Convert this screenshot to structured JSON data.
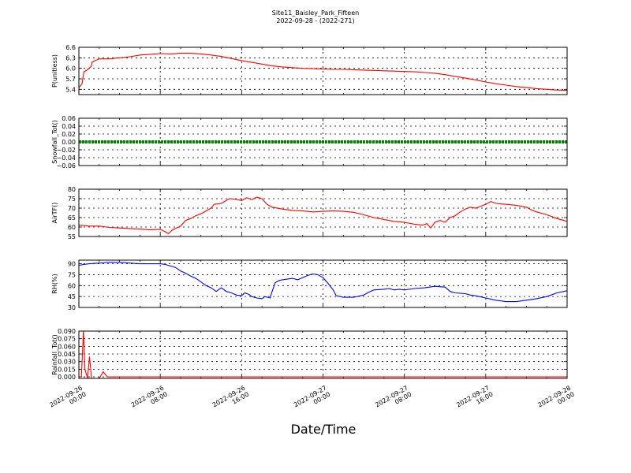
{
  "figure": {
    "title": "Site11_Baisley_Park_Fifteen",
    "subtitle": "2022-09-28 - (2022-271)",
    "xlabel": "Date/Time"
  },
  "chart_data": {
    "type": "line",
    "x_ticks": [
      {
        "value": 0,
        "line1": "2022-09-26",
        "line2": "00:00"
      },
      {
        "value": 8,
        "line1": "2022-09-26",
        "line2": "08:00"
      },
      {
        "value": 16,
        "line1": "2022-09-26",
        "line2": "16:00"
      },
      {
        "value": 24,
        "line1": "2022-09-27",
        "line2": "00:00"
      },
      {
        "value": 32,
        "line1": "2022-09-27",
        "line2": "08:00"
      },
      {
        "value": 40,
        "line1": "2022-09-27",
        "line2": "16:00"
      },
      {
        "value": 48,
        "line1": "2022-09-28",
        "line2": "00:00"
      }
    ],
    "xlim": [
      0,
      48
    ],
    "panels": [
      {
        "ylabel": "P(unitless)",
        "ylim": [
          5.25,
          6.6
        ],
        "yticks": [
          5.4,
          5.7,
          6.0,
          6.3,
          6.6
        ],
        "ytick_labels": [
          "5.4",
          "5.7",
          "6.0",
          "6.3",
          "6.6"
        ],
        "color": "#ff0000",
        "style": "line",
        "points": [
          [
            0,
            5.45
          ],
          [
            0.3,
            5.55
          ],
          [
            0.5,
            5.9
          ],
          [
            0.8,
            5.95
          ],
          [
            1.2,
            6.05
          ],
          [
            1.3,
            6.18
          ],
          [
            1.6,
            6.22
          ],
          [
            2,
            6.27
          ],
          [
            3,
            6.27
          ],
          [
            4,
            6.3
          ],
          [
            5,
            6.33
          ],
          [
            6,
            6.38
          ],
          [
            7,
            6.4
          ],
          [
            8,
            6.42
          ],
          [
            9,
            6.41
          ],
          [
            10,
            6.43
          ],
          [
            11,
            6.43
          ],
          [
            12,
            6.41
          ],
          [
            13,
            6.38
          ],
          [
            14,
            6.34
          ],
          [
            15,
            6.28
          ],
          [
            16,
            6.22
          ],
          [
            17,
            6.17
          ],
          [
            18,
            6.12
          ],
          [
            19,
            6.07
          ],
          [
            20,
            6.04
          ],
          [
            21,
            6.02
          ],
          [
            22,
            6.0
          ],
          [
            23,
            5.99
          ],
          [
            24,
            5.98
          ],
          [
            25,
            5.97
          ],
          [
            26,
            5.97
          ],
          [
            27,
            5.96
          ],
          [
            28,
            5.95
          ],
          [
            29,
            5.94
          ],
          [
            30,
            5.93
          ],
          [
            31,
            5.92
          ],
          [
            32,
            5.91
          ],
          [
            33,
            5.9
          ],
          [
            34,
            5.88
          ],
          [
            35,
            5.86
          ],
          [
            36,
            5.82
          ],
          [
            37,
            5.77
          ],
          [
            38,
            5.72
          ],
          [
            39,
            5.67
          ],
          [
            40,
            5.61
          ],
          [
            41,
            5.56
          ],
          [
            42,
            5.52
          ],
          [
            43,
            5.48
          ],
          [
            44,
            5.45
          ],
          [
            45,
            5.42
          ],
          [
            46,
            5.4
          ],
          [
            47,
            5.38
          ],
          [
            48,
            5.37
          ]
        ]
      },
      {
        "ylabel": "Snowfall_Tot()",
        "ylim": [
          -0.06,
          0.06
        ],
        "yticks": [
          -0.06,
          -0.04,
          -0.02,
          0.0,
          0.02,
          0.04,
          0.06
        ],
        "ytick_labels": [
          "−0.06",
          "−0.04",
          "−0.02",
          "0.00",
          "0.02",
          "0.04",
          "0.06"
        ],
        "color": "#008000",
        "style": "dots",
        "points": [
          [
            0,
            0
          ],
          [
            48,
            0
          ]
        ]
      },
      {
        "ylabel": "AirTF()",
        "ylim": [
          55,
          80
        ],
        "yticks": [
          55,
          60,
          65,
          70,
          75,
          80
        ],
        "ytick_labels": [
          "55",
          "60",
          "65",
          "70",
          "75",
          "80"
        ],
        "color": "#ff0000",
        "style": "line",
        "points": [
          [
            0,
            61
          ],
          [
            1,
            60.5
          ],
          [
            2,
            60.5
          ],
          [
            3,
            59.8
          ],
          [
            4,
            59.5
          ],
          [
            5,
            59.2
          ],
          [
            6,
            59
          ],
          [
            7,
            58.5
          ],
          [
            8,
            58.8
          ],
          [
            8.5,
            57.5
          ],
          [
            8.8,
            56.5
          ],
          [
            9.2,
            58.5
          ],
          [
            10,
            60.5
          ],
          [
            10.5,
            63.5
          ],
          [
            11,
            64.5
          ],
          [
            11.5,
            66
          ],
          [
            12,
            67
          ],
          [
            12.5,
            68.5
          ],
          [
            13,
            70
          ],
          [
            13.3,
            72
          ],
          [
            14,
            72.5
          ],
          [
            14.8,
            75
          ],
          [
            15.3,
            74.8
          ],
          [
            16,
            74
          ],
          [
            16.5,
            75.5
          ],
          [
            17,
            74.5
          ],
          [
            17.5,
            75.8
          ],
          [
            18,
            75
          ],
          [
            18.5,
            72
          ],
          [
            19,
            70.5
          ],
          [
            20,
            69.5
          ],
          [
            21,
            68.8
          ],
          [
            22,
            68.5
          ],
          [
            23,
            68
          ],
          [
            24,
            68.3
          ],
          [
            25,
            68.5
          ],
          [
            26,
            68.3
          ],
          [
            27,
            67.8
          ],
          [
            28,
            66.5
          ],
          [
            29,
            65
          ],
          [
            30,
            64
          ],
          [
            31,
            63
          ],
          [
            32,
            62.5
          ],
          [
            33,
            61.5
          ],
          [
            33.8,
            61
          ],
          [
            34.2,
            61.8
          ],
          [
            34.6,
            59.5
          ],
          [
            35,
            62.5
          ],
          [
            35.5,
            63.5
          ],
          [
            36,
            62.5
          ],
          [
            36.5,
            65
          ],
          [
            37,
            66
          ],
          [
            37.5,
            68
          ],
          [
            38,
            69.5
          ],
          [
            38.5,
            70.5
          ],
          [
            39,
            70
          ],
          [
            39.5,
            71
          ],
          [
            40,
            72
          ],
          [
            40.5,
            73.5
          ],
          [
            41,
            72.5
          ],
          [
            42,
            72
          ],
          [
            43,
            71.5
          ],
          [
            44,
            70.5
          ],
          [
            44.5,
            69
          ],
          [
            45,
            68
          ],
          [
            46,
            66.5
          ],
          [
            47,
            64.5
          ],
          [
            48,
            63
          ]
        ]
      },
      {
        "ylabel": "RH(%)",
        "ylim": [
          30,
          95
        ],
        "yticks": [
          30,
          45,
          60,
          75,
          90
        ],
        "ytick_labels": [
          "30",
          "45",
          "60",
          "75",
          "90"
        ],
        "color": "#0000ff",
        "style": "line",
        "points": [
          [
            0,
            88
          ],
          [
            0.5,
            89
          ],
          [
            1,
            90
          ],
          [
            2,
            91
          ],
          [
            3,
            92
          ],
          [
            4,
            92
          ],
          [
            5,
            91
          ],
          [
            6,
            90
          ],
          [
            7,
            90
          ],
          [
            8,
            90
          ],
          [
            8.5,
            89
          ],
          [
            9,
            87
          ],
          [
            9.5,
            85
          ],
          [
            10,
            80
          ],
          [
            10.5,
            77
          ],
          [
            11,
            73
          ],
          [
            11.5,
            70
          ],
          [
            12,
            65
          ],
          [
            12.5,
            60
          ],
          [
            13,
            57
          ],
          [
            13.5,
            52
          ],
          [
            14,
            57
          ],
          [
            14.5,
            52
          ],
          [
            15,
            50
          ],
          [
            15.5,
            47
          ],
          [
            16,
            46
          ],
          [
            16.3,
            50
          ],
          [
            16.7,
            48
          ],
          [
            17,
            45
          ],
          [
            17.5,
            43
          ],
          [
            18,
            42
          ],
          [
            18.3,
            45
          ],
          [
            18.8,
            43
          ],
          [
            19,
            52
          ],
          [
            19.3,
            64
          ],
          [
            19.7,
            67
          ],
          [
            20,
            68
          ],
          [
            21,
            70
          ],
          [
            21.5,
            68
          ],
          [
            22,
            71
          ],
          [
            22.5,
            74
          ],
          [
            23,
            76
          ],
          [
            23.5,
            75
          ],
          [
            24,
            71
          ],
          [
            24.5,
            63
          ],
          [
            25,
            54
          ],
          [
            25.3,
            46
          ],
          [
            26,
            44
          ],
          [
            27,
            44
          ],
          [
            28,
            47
          ],
          [
            28.5,
            51
          ],
          [
            29,
            54
          ],
          [
            30,
            55
          ],
          [
            30.5,
            56
          ],
          [
            31,
            54
          ],
          [
            31.5,
            55
          ],
          [
            32,
            54
          ],
          [
            33,
            56
          ],
          [
            34,
            57
          ],
          [
            35,
            59
          ],
          [
            36,
            58
          ],
          [
            36.5,
            52
          ],
          [
            37,
            50
          ],
          [
            38,
            49
          ],
          [
            38.5,
            47
          ],
          [
            39,
            46
          ],
          [
            40,
            43
          ],
          [
            41,
            40
          ],
          [
            42,
            38
          ],
          [
            43,
            38
          ],
          [
            44,
            40
          ],
          [
            45,
            42
          ],
          [
            46,
            45
          ],
          [
            47,
            50
          ],
          [
            48,
            53
          ]
        ]
      },
      {
        "ylabel": "Rainfall_Tot()",
        "ylim": [
          -0.003,
          0.09
        ],
        "yticks": [
          0.0,
          0.015,
          0.03,
          0.045,
          0.06,
          0.075,
          0.09
        ],
        "ytick_labels": [
          "0.000",
          "0.015",
          "0.030",
          "0.045",
          "0.060",
          "0.075",
          "0.090"
        ],
        "color": "#ff0000",
        "style": "line",
        "points": [
          [
            0,
            0
          ],
          [
            0.25,
            0
          ],
          [
            0.45,
            0.09
          ],
          [
            0.6,
            0.015
          ],
          [
            0.85,
            -0.003
          ],
          [
            1.05,
            0.04
          ],
          [
            1.25,
            -0.003
          ],
          [
            2,
            -0.003
          ],
          [
            2.4,
            0.01
          ],
          [
            2.8,
            0
          ],
          [
            48,
            0
          ]
        ]
      }
    ]
  }
}
